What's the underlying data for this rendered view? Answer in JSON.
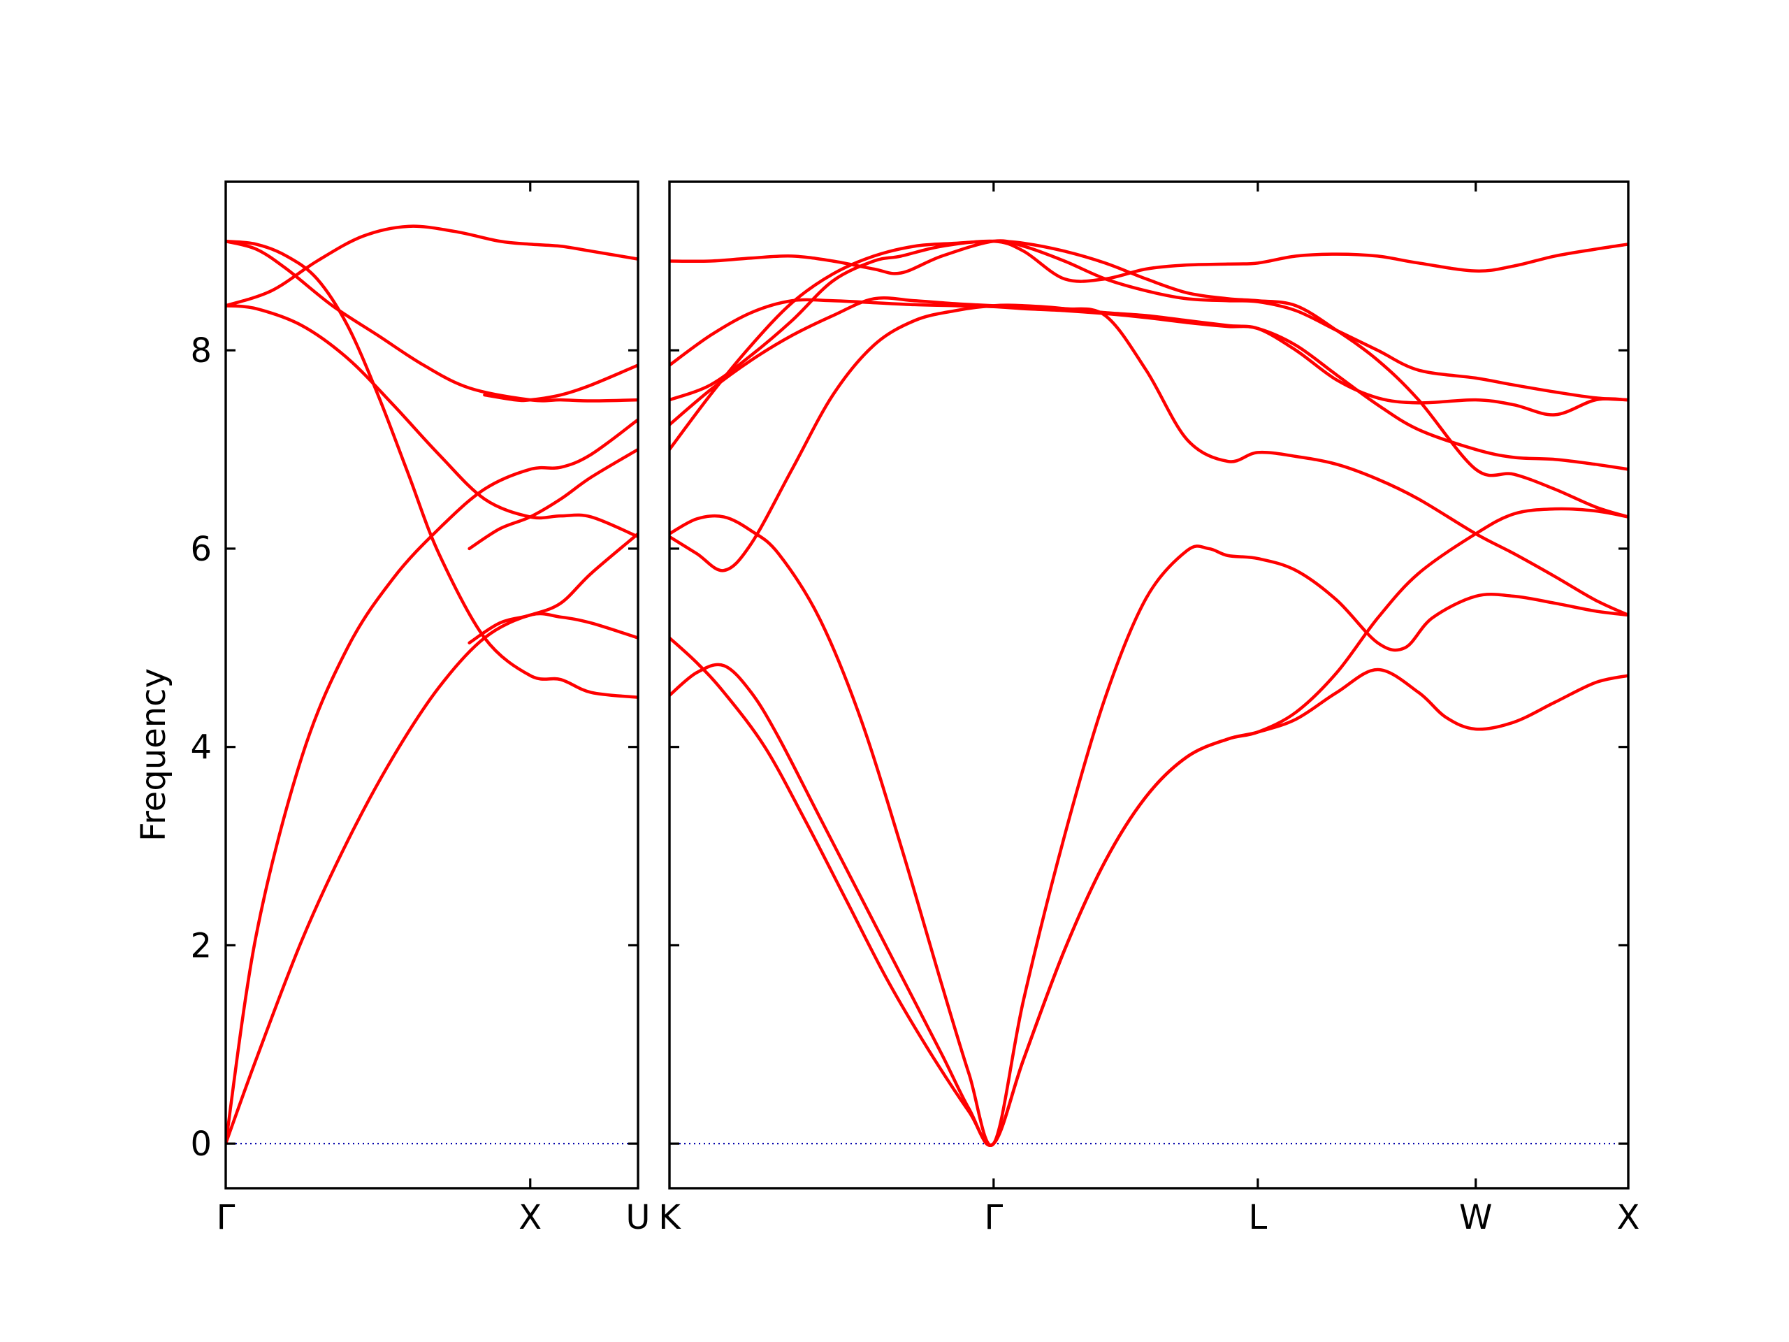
{
  "chart_data": {
    "type": "line",
    "ylabel": "Frequency",
    "ylim": [
      -0.45,
      9.7
    ],
    "yticks": [
      0,
      2,
      4,
      6,
      8
    ],
    "grid": false,
    "line_color": "#ff0000",
    "zero_line_color": "#0000aa",
    "panels": [
      {
        "xlim": [
          0,
          1.354
        ],
        "labels": [
          {
            "x": 0,
            "text": "Γ"
          },
          {
            "x": 1.0,
            "text": "X"
          },
          {
            "x": 1.354,
            "text": "U"
          }
        ],
        "series": [
          {
            "x": [
              0,
              0.1,
              0.25,
              0.4,
              0.55,
              0.7,
              0.85,
              1.0,
              1.1,
              1.2,
              1.354
            ],
            "y": [
              0,
              0.85,
              2.05,
              3.05,
              3.9,
              4.6,
              5.1,
              5.33,
              5.31,
              5.25,
              5.1
            ]
          },
          {
            "x": [
              0,
              0.1,
              0.25,
              0.4,
              0.55,
              0.7,
              0.85,
              1.0,
              1.1,
              1.2,
              1.354
            ],
            "y": [
              0,
              2.1,
              3.9,
              5.0,
              5.7,
              6.2,
              6.6,
              6.8,
              6.82,
              6.95,
              7.3
            ]
          },
          {
            "x": [
              0,
              0.1,
              0.2,
              0.3,
              0.4,
              0.5,
              0.6,
              0.7,
              0.85,
              1.0,
              1.1,
              1.2,
              1.354
            ],
            "y": [
              9.1,
              9.07,
              8.95,
              8.72,
              8.25,
              7.55,
              6.75,
              5.95,
              5.1,
              4.72,
              4.68,
              4.55,
              4.5
            ]
          },
          {
            "x": [
              0,
              0.1,
              0.25,
              0.4,
              0.55,
              0.7,
              0.85,
              1.0,
              1.1,
              1.2,
              1.354
            ],
            "y": [
              8.45,
              8.42,
              8.25,
              7.92,
              7.45,
              6.95,
              6.5,
              6.32,
              6.33,
              6.32,
              6.12
            ]
          },
          {
            "x": [
              0,
              0.15,
              0.3,
              0.45,
              0.6,
              0.75,
              0.9,
              1.0,
              1.1,
              1.2,
              1.354
            ],
            "y": [
              8.45,
              8.6,
              8.9,
              9.15,
              9.25,
              9.2,
              9.1,
              9.07,
              9.05,
              9.0,
              8.92
            ]
          },
          {
            "x": [
              0,
              0.1,
              0.2,
              0.35,
              0.5,
              0.65,
              0.8,
              1.0,
              1.1,
              1.2,
              1.354
            ],
            "y": [
              9.1,
              9.02,
              8.82,
              8.45,
              8.15,
              7.85,
              7.62,
              7.5,
              7.5,
              7.49,
              7.5
            ]
          },
          {
            "x": [
              0.8,
              0.9,
              1.0,
              1.1,
              1.2,
              1.354
            ],
            "y": [
              5.05,
              5.25,
              5.33,
              5.45,
              5.75,
              6.15
            ]
          },
          {
            "x": [
              0.8,
              0.9,
              1.0,
              1.1,
              1.2,
              1.354
            ],
            "y": [
              6.0,
              6.2,
              6.32,
              6.5,
              6.72,
              7.0
            ]
          },
          {
            "x": [
              0.85,
              0.95,
              1.0,
              1.1,
              1.2,
              1.354
            ],
            "y": [
              7.55,
              7.5,
              7.5,
              7.55,
              7.65,
              7.85
            ]
          }
        ]
      },
      {
        "xlim": [
          0,
          3.52
        ],
        "labels": [
          {
            "x": 0,
            "text": "K"
          },
          {
            "x": 1.19,
            "text": "Γ"
          },
          {
            "x": 2.16,
            "text": "L"
          },
          {
            "x": 2.96,
            "text": "W"
          },
          {
            "x": 3.52,
            "text": "X"
          }
        ],
        "series": [
          {
            "x": [
              0,
              0.1,
              0.2,
              0.35,
              0.5,
              0.65,
              0.8,
              0.95,
              1.1,
              1.19,
              1.3,
              1.45,
              1.6,
              1.75,
              1.9,
              2.05,
              2.16,
              2.3,
              2.45,
              2.6,
              2.75,
              2.85,
              2.96,
              3.1,
              3.25,
              3.4,
              3.52
            ],
            "y": [
              5.1,
              4.85,
              4.55,
              4.0,
              3.25,
              2.45,
              1.65,
              0.95,
              0.32,
              0,
              0.85,
              1.95,
              2.85,
              3.5,
              3.9,
              4.08,
              4.15,
              4.28,
              4.55,
              4.78,
              4.55,
              4.3,
              4.18,
              4.25,
              4.45,
              4.65,
              4.72
            ]
          },
          {
            "x": [
              0,
              0.1,
              0.2,
              0.3,
              0.4,
              0.55,
              0.7,
              0.85,
              1.0,
              1.1,
              1.19,
              1.3,
              1.45,
              1.6,
              1.75,
              1.9,
              2.05,
              2.16,
              2.3,
              2.45,
              2.6,
              2.75,
              2.96,
              3.1,
              3.25,
              3.4,
              3.52
            ],
            "y": [
              4.52,
              4.75,
              4.82,
              4.55,
              4.1,
              3.3,
              2.5,
              1.7,
              0.9,
              0.35,
              0,
              0.85,
              1.95,
              2.85,
              3.5,
              3.9,
              4.08,
              4.15,
              4.35,
              4.75,
              5.3,
              5.75,
              6.15,
              6.35,
              6.4,
              6.38,
              6.32
            ]
          },
          {
            "x": [
              0,
              0.1,
              0.2,
              0.3,
              0.4,
              0.55,
              0.7,
              0.85,
              1.0,
              1.1,
              1.19,
              1.3,
              1.45,
              1.6,
              1.75,
              1.9,
              1.98,
              2.05,
              2.16,
              2.3,
              2.45,
              2.6,
              2.7,
              2.8,
              2.96,
              3.1,
              3.25,
              3.4,
              3.52
            ],
            "y": [
              6.15,
              6.3,
              6.32,
              6.18,
              5.95,
              5.3,
              4.3,
              3.0,
              1.6,
              0.7,
              0,
              1.45,
              3.1,
              4.5,
              5.5,
              5.98,
              6.0,
              5.93,
              5.9,
              5.78,
              5.48,
              5.05,
              5.0,
              5.3,
              5.52,
              5.52,
              5.45,
              5.37,
              5.33
            ]
          },
          {
            "x": [
              0,
              0.1,
              0.2,
              0.3,
              0.45,
              0.6,
              0.75,
              0.9,
              1.05,
              1.19,
              1.3,
              1.45,
              1.6,
              1.75,
              1.9,
              2.05,
              2.16,
              2.3,
              2.45,
              2.6,
              2.75,
              2.96,
              3.1,
              3.25,
              3.4,
              3.52
            ],
            "y": [
              6.12,
              5.95,
              5.78,
              6.05,
              6.8,
              7.55,
              8.05,
              8.3,
              8.4,
              8.45,
              8.45,
              8.42,
              8.35,
              7.8,
              7.1,
              6.88,
              6.97,
              6.93,
              6.85,
              6.7,
              6.5,
              6.15,
              5.95,
              5.72,
              5.48,
              5.33
            ]
          },
          {
            "x": [
              0,
              0.15,
              0.3,
              0.45,
              0.6,
              0.75,
              0.9,
              1.05,
              1.19,
              1.3,
              1.45,
              1.6,
              1.75,
              1.9,
              2.05,
              2.16,
              2.3,
              2.45,
              2.6,
              2.75,
              2.96,
              3.1,
              3.25,
              3.4,
              3.52
            ],
            "y": [
              7.0,
              7.55,
              8.05,
              8.48,
              8.77,
              8.95,
              9.05,
              9.08,
              9.1,
              9.08,
              9.0,
              8.88,
              8.72,
              8.58,
              8.52,
              8.5,
              8.45,
              8.2,
              7.9,
              7.5,
              6.8,
              6.75,
              6.6,
              6.42,
              6.32
            ]
          },
          {
            "x": [
              0,
              0.15,
              0.3,
              0.45,
              0.6,
              0.75,
              0.9,
              1.05,
              1.19,
              1.3,
              1.45,
              1.6,
              1.75,
              1.9,
              2.05,
              2.16,
              2.3,
              2.45,
              2.6,
              2.75,
              2.96,
              3.1,
              3.25,
              3.4,
              3.52
            ],
            "y": [
              7.25,
              7.6,
              7.9,
              8.15,
              8.35,
              8.52,
              8.5,
              8.47,
              8.45,
              8.44,
              8.42,
              8.38,
              8.35,
              8.3,
              8.25,
              8.22,
              8.05,
              7.75,
              7.45,
              7.2,
              7.0,
              6.92,
              6.9,
              6.85,
              6.8
            ]
          },
          {
            "x": [
              0,
              0.15,
              0.3,
              0.45,
              0.6,
              0.75,
              0.9,
              1.05,
              1.19,
              1.3,
              1.45,
              1.6,
              1.75,
              1.9,
              2.05,
              2.16,
              2.3,
              2.45,
              2.6,
              2.75,
              2.96,
              3.1,
              3.25,
              3.4,
              3.52
            ],
            "y": [
              7.85,
              8.15,
              8.38,
              8.5,
              8.5,
              8.48,
              8.46,
              8.45,
              8.44,
              8.42,
              8.4,
              8.37,
              8.33,
              8.28,
              8.24,
              8.22,
              8.0,
              7.7,
              7.52,
              7.47,
              7.5,
              7.45,
              7.35,
              7.5,
              7.5
            ]
          },
          {
            "x": [
              0,
              0.15,
              0.3,
              0.45,
              0.6,
              0.75,
              0.85,
              1.0,
              1.19,
              1.3,
              1.45,
              1.6,
              1.75,
              1.9,
              2.05,
              2.16,
              2.3,
              2.45,
              2.6,
              2.75,
              2.96,
              3.1,
              3.25,
              3.4,
              3.52
            ],
            "y": [
              7.5,
              7.65,
              7.95,
              8.3,
              8.7,
              8.9,
              8.95,
              9.05,
              9.1,
              9.0,
              8.72,
              8.72,
              8.82,
              8.86,
              8.87,
              8.88,
              8.95,
              8.97,
              8.95,
              8.88,
              8.8,
              8.85,
              8.95,
              9.02,
              9.07
            ]
          },
          {
            "x": [
              0,
              0.15,
              0.3,
              0.45,
              0.6,
              0.75,
              0.85,
              1.0,
              1.19,
              1.3,
              1.45,
              1.6,
              1.75,
              1.9,
              2.05,
              2.16,
              2.3,
              2.45,
              2.6,
              2.75,
              2.96,
              3.1,
              3.25,
              3.4,
              3.52
            ],
            "y": [
              8.9,
              8.9,
              8.93,
              8.95,
              8.9,
              8.82,
              8.78,
              8.95,
              9.1,
              9.05,
              8.9,
              8.72,
              8.6,
              8.52,
              8.5,
              8.49,
              8.4,
              8.2,
              8.0,
              7.8,
              7.72,
              7.65,
              7.58,
              7.52,
              7.5
            ]
          }
        ]
      }
    ]
  }
}
